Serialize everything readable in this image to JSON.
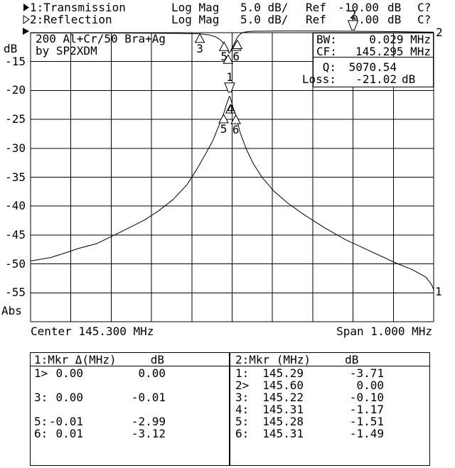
{
  "header": {
    "lines": [
      {
        "pointer": "filled",
        "channel": "1:Transmission",
        "format": "Log Mag",
        "scale": "5.0 dB/",
        "ref_label": "Ref",
        "ref_value": "-10.00",
        "ref_unit": "dB",
        "cal": "C?"
      },
      {
        "pointer": "hollow",
        "channel": "2:Reflection",
        "format": "Log Mag",
        "scale": "5.0 dB/",
        "ref_label": "Ref",
        "ref_value": "0.00",
        "ref_unit": "dB",
        "cal": "C?"
      }
    ]
  },
  "plot": {
    "title_line1": "200 Al+Cr/50 Bra+Ag",
    "title_line2": "by SP2XDM",
    "y_unit_label": "dB",
    "y_bottom_label": "Abs",
    "y_ticks": [
      "-15",
      "-20",
      "-25",
      "-30",
      "-35",
      "-40",
      "-45",
      "-50",
      "-55"
    ],
    "trace_id_top_right": "2",
    "trace_id_bottom_right": "1",
    "center_label": "Center 145.300 MHz",
    "span_label": "Span 1.000 MHz",
    "info_box1": {
      "rows": [
        {
          "label": "BW:",
          "value": "0.029 MHz"
        },
        {
          "label": "CF:",
          "value": "145.295 MHz"
        }
      ]
    },
    "info_box2": {
      "rows": [
        {
          "label": "Q:",
          "value": "5070.54",
          "unit": ""
        },
        {
          "label": "Loss:",
          "value": "-21.02",
          "unit": "dB"
        }
      ]
    }
  },
  "tables": {
    "t1": {
      "header": "1:Mkr Δ(MHz)     dB",
      "rows": [
        [
          "1>",
          "0.00",
          "0.00"
        ],
        [
          "",
          "",
          ""
        ],
        [
          "3:",
          "0.00",
          "-0.01"
        ],
        [
          "",
          "",
          ""
        ],
        [
          "5:",
          "-0.01",
          "-2.99"
        ],
        [
          "6:",
          "0.01",
          "-3.12"
        ]
      ]
    },
    "t2": {
      "header": "2:Mkr (MHz)     dB",
      "rows": [
        [
          "1:",
          "145.29",
          "-3.71"
        ],
        [
          "2>",
          "145.60",
          "0.00"
        ],
        [
          "3:",
          "145.22",
          "-0.10"
        ],
        [
          "4:",
          "145.31",
          "-1.17"
        ],
        [
          "5:",
          "145.28",
          "-1.51"
        ],
        [
          "6:",
          "145.31",
          "-1.49"
        ]
      ]
    }
  },
  "chart_data": {
    "type": "line",
    "title": "200 Al+Cr/50 Bra+Ag by SP2XDM",
    "x_axis": {
      "center_mhz": 145.3,
      "span_mhz": 1.0,
      "min": 144.8,
      "max": 145.8,
      "unit": "MHz",
      "divisions": 10
    },
    "y_axis": {
      "unit": "dB",
      "divisions": 10,
      "ch1": {
        "name": "Transmission",
        "format": "Log Mag",
        "scale_db_per_div": 5.0,
        "ref_db": -10.0
      },
      "ch2": {
        "name": "Reflection",
        "format": "Log Mag",
        "scale_db_per_div": 5.0,
        "ref_db": 0.0
      }
    },
    "grid": true,
    "series": [
      {
        "name": "1: Transmission",
        "channel": 1,
        "points": [
          [
            144.8,
            -49.5
          ],
          [
            144.85,
            -48.9
          ],
          [
            144.882,
            -48.2
          ],
          [
            144.92,
            -47.3
          ],
          [
            144.964,
            -46.5
          ],
          [
            145.023,
            -44.5
          ],
          [
            145.083,
            -42.4
          ],
          [
            145.118,
            -40.8
          ],
          [
            145.153,
            -38.9
          ],
          [
            145.188,
            -36.3
          ],
          [
            145.211,
            -33.8
          ],
          [
            145.234,
            -31.0
          ],
          [
            145.252,
            -28.7
          ],
          [
            145.27,
            -25.6
          ],
          [
            145.279,
            -24.0
          ],
          [
            145.287,
            -22.2
          ],
          [
            145.292,
            -21.2
          ],
          [
            145.294,
            -21.0
          ],
          [
            145.297,
            -21.6
          ],
          [
            145.303,
            -23.1
          ],
          [
            145.309,
            -24.2
          ],
          [
            145.32,
            -27.3
          ],
          [
            145.335,
            -30.1
          ],
          [
            145.352,
            -32.6
          ],
          [
            145.375,
            -35.1
          ],
          [
            145.405,
            -37.5
          ],
          [
            145.44,
            -39.6
          ],
          [
            145.481,
            -41.6
          ],
          [
            145.528,
            -43.7
          ],
          [
            145.581,
            -45.8
          ],
          [
            145.64,
            -47.7
          ],
          [
            145.705,
            -49.8
          ],
          [
            145.747,
            -51.0
          ],
          [
            145.781,
            -52.3
          ],
          [
            145.795,
            -53.6
          ],
          [
            145.8,
            -54.5
          ]
        ]
      },
      {
        "name": "2: Reflection",
        "channel": 2,
        "points": [
          [
            144.8,
            -0.05
          ],
          [
            144.95,
            -0.05
          ],
          [
            145.1,
            -0.1
          ],
          [
            145.18,
            -0.15
          ],
          [
            145.22,
            -0.2
          ],
          [
            145.245,
            -0.4
          ],
          [
            145.26,
            -0.75
          ],
          [
            145.27,
            -1.2
          ],
          [
            145.28,
            -1.9
          ],
          [
            145.285,
            -2.5
          ],
          [
            145.29,
            -3.2
          ],
          [
            145.293,
            -3.55
          ],
          [
            145.296,
            -3.2
          ],
          [
            145.3,
            -2.6
          ],
          [
            145.305,
            -1.9
          ],
          [
            145.31,
            -1.2
          ],
          [
            145.315,
            -0.6
          ],
          [
            145.322,
            -0.15
          ],
          [
            145.33,
            0.1
          ],
          [
            145.35,
            0.25
          ],
          [
            145.42,
            0.3
          ],
          [
            145.5,
            0.3
          ],
          [
            145.6,
            0.25
          ],
          [
            145.7,
            0.18
          ],
          [
            145.8,
            0.1
          ]
        ]
      }
    ],
    "markers": [
      {
        "ch": 2,
        "label": "3",
        "x": 145.22,
        "y": -0.1,
        "symbol": "up",
        "show_label": true
      },
      {
        "ch": 2,
        "label": "5",
        "x": 145.28,
        "y": -1.51,
        "symbol": "up",
        "show_label": true
      },
      {
        "ch": 2,
        "label": "6",
        "x": 145.31,
        "y": -1.49,
        "symbol": "up",
        "show_label": true
      },
      {
        "ch": 2,
        "label": "4",
        "x": 145.313,
        "y": -1.17,
        "symbol": "up",
        "show_label": false
      },
      {
        "ch": 2,
        "label": "1",
        "x": 145.29,
        "y": -3.71,
        "symbol": "up",
        "show_label": false
      },
      {
        "ch": 2,
        "label": "2",
        "x": 145.6,
        "y": 0.0,
        "symbol": "down",
        "show_label": true,
        "dy": -4
      },
      {
        "ch": 1,
        "label": "1",
        "x": 145.294,
        "y": -21.02,
        "symbol": "down",
        "show_label": true,
        "dy": -6
      },
      {
        "ch": 1,
        "label": "4",
        "x": 145.296,
        "y": -22.3,
        "symbol": "up",
        "show_label": true,
        "label_dy": -14
      },
      {
        "ch": 1,
        "label": "5",
        "x": 145.279,
        "y": -24.01,
        "symbol": "up",
        "show_label": true
      },
      {
        "ch": 1,
        "label": "6",
        "x": 145.309,
        "y": -24.14,
        "symbol": "up",
        "show_label": true
      }
    ],
    "readouts": {
      "bw_mhz": 0.029,
      "cf_mhz": 145.295,
      "q": 5070.54,
      "loss_db": -21.02
    }
  }
}
